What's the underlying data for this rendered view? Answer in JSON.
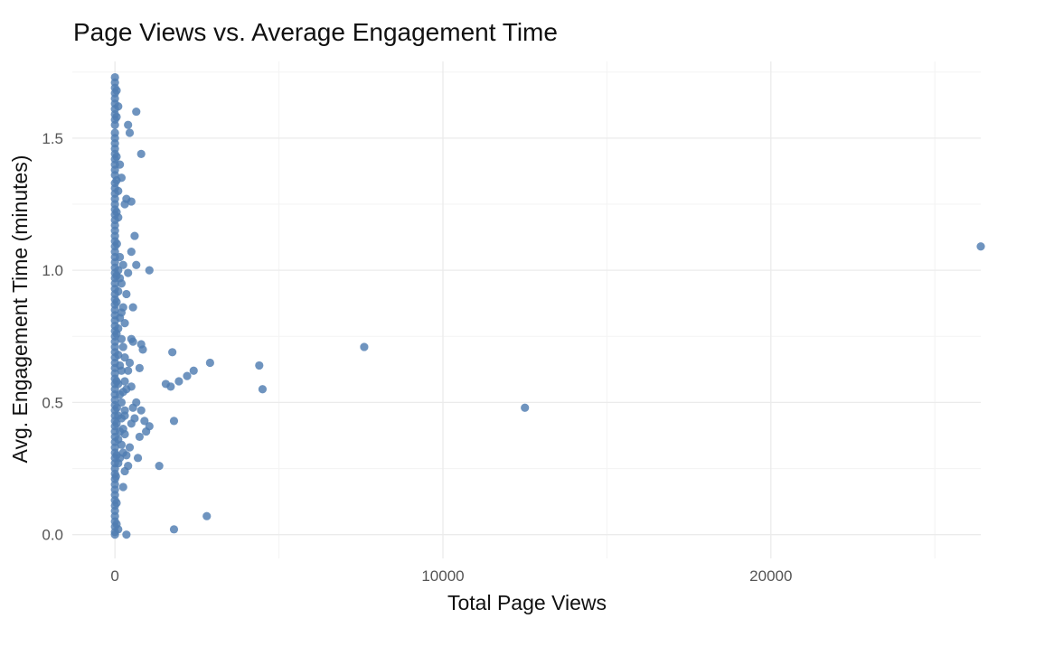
{
  "chart_data": {
    "type": "scatter",
    "title": "Page Views vs. Average Engagement Time",
    "xlabel": "Total Page Views",
    "ylabel": "Avg. Engagement Time (minutes)",
    "xlim": [
      -1300,
      26400
    ],
    "ylim": [
      -0.09,
      1.79
    ],
    "x_ticks": [
      0,
      10000,
      20000
    ],
    "x_tick_labels": [
      "0",
      "10000",
      "20000"
    ],
    "y_ticks": [
      0.0,
      0.5,
      1.0,
      1.5
    ],
    "y_tick_labels": [
      "0.0",
      "0.5",
      "1.0",
      "1.5"
    ],
    "grid": true,
    "legend": "none",
    "point_color": "#4f7db1",
    "series": [
      {
        "points": [
          [
            26400,
            1.09
          ],
          [
            12500,
            0.48
          ],
          [
            7600,
            0.71
          ],
          [
            4500,
            0.55
          ],
          [
            4400,
            0.64
          ],
          [
            2900,
            0.65
          ],
          [
            2800,
            0.07
          ],
          [
            2400,
            0.62
          ],
          [
            2200,
            0.6
          ],
          [
            1950,
            0.58
          ],
          [
            1800,
            0.43
          ],
          [
            1800,
            0.02
          ],
          [
            1750,
            0.69
          ],
          [
            1700,
            0.56
          ],
          [
            1550,
            0.57
          ],
          [
            1350,
            0.26
          ],
          [
            1050,
            1.0
          ],
          [
            1050,
            0.41
          ],
          [
            950,
            0.39
          ],
          [
            900,
            0.43
          ],
          [
            850,
            0.7
          ],
          [
            800,
            1.44
          ],
          [
            800,
            0.72
          ],
          [
            800,
            0.47
          ],
          [
            750,
            0.63
          ],
          [
            750,
            0.37
          ],
          [
            700,
            0.29
          ],
          [
            650,
            1.6
          ],
          [
            650,
            1.02
          ],
          [
            650,
            0.5
          ],
          [
            600,
            1.13
          ],
          [
            600,
            0.44
          ],
          [
            550,
            0.86
          ],
          [
            550,
            0.73
          ],
          [
            550,
            0.48
          ],
          [
            500,
            1.26
          ],
          [
            500,
            1.07
          ],
          [
            500,
            0.74
          ],
          [
            500,
            0.56
          ],
          [
            500,
            0.42
          ],
          [
            450,
            1.52
          ],
          [
            450,
            0.65
          ],
          [
            450,
            0.33
          ],
          [
            400,
            1.55
          ],
          [
            400,
            0.99
          ],
          [
            400,
            0.62
          ],
          [
            400,
            0.26
          ],
          [
            350,
            1.27
          ],
          [
            350,
            0.91
          ],
          [
            350,
            0.55
          ],
          [
            350,
            0.3
          ],
          [
            350,
            0.0
          ],
          [
            300,
            1.25
          ],
          [
            300,
            0.8
          ],
          [
            300,
            0.38
          ],
          [
            250,
            1.02
          ],
          [
            250,
            0.71
          ],
          [
            250,
            0.18
          ],
          [
            200,
            0.95
          ],
          [
            200,
            0.62
          ],
          [
            200,
            0.5
          ],
          [
            150,
            1.05
          ],
          [
            150,
            0.82
          ],
          [
            100,
            1.3
          ],
          [
            100,
            0.68
          ],
          [
            100,
            0.36
          ],
          [
            60,
            1.1
          ],
          [
            60,
            0.48
          ],
          [
            30,
            0.22
          ],
          [
            0,
            1.73
          ],
          [
            0,
            1.71
          ],
          [
            0,
            1.69
          ],
          [
            0,
            1.67
          ],
          [
            0,
            1.65
          ],
          [
            0,
            1.63
          ],
          [
            0,
            1.61
          ],
          [
            0,
            1.59
          ],
          [
            0,
            1.57
          ],
          [
            0,
            1.55
          ],
          [
            0,
            1.52
          ],
          [
            0,
            1.5
          ],
          [
            0,
            1.48
          ],
          [
            0,
            1.46
          ],
          [
            0,
            1.44
          ],
          [
            0,
            1.42
          ],
          [
            0,
            1.4
          ],
          [
            0,
            1.38
          ],
          [
            0,
            1.36
          ],
          [
            0,
            1.33
          ],
          [
            0,
            1.31
          ],
          [
            0,
            1.29
          ],
          [
            0,
            1.27
          ],
          [
            0,
            1.25
          ],
          [
            0,
            1.23
          ],
          [
            0,
            1.21
          ],
          [
            0,
            1.19
          ],
          [
            0,
            1.17
          ],
          [
            0,
            1.15
          ],
          [
            0,
            1.13
          ],
          [
            0,
            1.11
          ],
          [
            0,
            1.09
          ],
          [
            0,
            1.07
          ],
          [
            0,
            1.05
          ],
          [
            0,
            1.03
          ],
          [
            0,
            1.01
          ],
          [
            0,
            0.99
          ],
          [
            0,
            0.97
          ],
          [
            0,
            0.95
          ],
          [
            0,
            0.93
          ],
          [
            0,
            0.91
          ],
          [
            0,
            0.89
          ],
          [
            0,
            0.87
          ],
          [
            0,
            0.85
          ],
          [
            0,
            0.83
          ],
          [
            0,
            0.81
          ],
          [
            0,
            0.79
          ],
          [
            0,
            0.77
          ],
          [
            0,
            0.75
          ],
          [
            0,
            0.73
          ],
          [
            0,
            0.71
          ],
          [
            0,
            0.69
          ],
          [
            0,
            0.67
          ],
          [
            0,
            0.65
          ],
          [
            0,
            0.63
          ],
          [
            0,
            0.61
          ],
          [
            0,
            0.59
          ],
          [
            0,
            0.57
          ],
          [
            0,
            0.55
          ],
          [
            0,
            0.53
          ],
          [
            0,
            0.51
          ],
          [
            0,
            0.49
          ],
          [
            0,
            0.47
          ],
          [
            0,
            0.45
          ],
          [
            0,
            0.43
          ],
          [
            0,
            0.41
          ],
          [
            0,
            0.39
          ],
          [
            0,
            0.37
          ],
          [
            0,
            0.35
          ],
          [
            0,
            0.33
          ],
          [
            0,
            0.31
          ],
          [
            0,
            0.29
          ],
          [
            0,
            0.27
          ],
          [
            0,
            0.25
          ],
          [
            0,
            0.23
          ],
          [
            0,
            0.21
          ],
          [
            0,
            0.19
          ],
          [
            0,
            0.17
          ],
          [
            0,
            0.15
          ],
          [
            0,
            0.13
          ],
          [
            0,
            0.11
          ],
          [
            0,
            0.09
          ],
          [
            0,
            0.07
          ],
          [
            0,
            0.05
          ],
          [
            0,
            0.03
          ],
          [
            0,
            0.01
          ],
          [
            0,
            0.0
          ],
          [
            50,
            1.68
          ],
          [
            50,
            1.58
          ],
          [
            50,
            1.43
          ],
          [
            50,
            1.34
          ],
          [
            50,
            1.22
          ],
          [
            50,
            0.98
          ],
          [
            50,
            0.88
          ],
          [
            50,
            0.76
          ],
          [
            50,
            0.58
          ],
          [
            50,
            0.42
          ],
          [
            50,
            0.3
          ],
          [
            50,
            0.12
          ],
          [
            50,
            0.04
          ],
          [
            100,
            1.62
          ],
          [
            100,
            1.2
          ],
          [
            100,
            1.0
          ],
          [
            100,
            0.92
          ],
          [
            100,
            0.78
          ],
          [
            100,
            0.57
          ],
          [
            100,
            0.45
          ],
          [
            100,
            0.27
          ],
          [
            100,
            0.02
          ],
          [
            150,
            1.4
          ],
          [
            150,
            0.97
          ],
          [
            150,
            0.64
          ],
          [
            150,
            0.53
          ],
          [
            150,
            0.39
          ],
          [
            150,
            0.29
          ],
          [
            200,
            1.35
          ],
          [
            200,
            0.84
          ],
          [
            200,
            0.74
          ],
          [
            200,
            0.44
          ],
          [
            200,
            0.34
          ],
          [
            250,
            0.86
          ],
          [
            250,
            0.54
          ],
          [
            250,
            0.4
          ],
          [
            250,
            0.31
          ],
          [
            300,
            0.67
          ],
          [
            300,
            0.58
          ],
          [
            300,
            0.47
          ],
          [
            300,
            0.45
          ],
          [
            300,
            0.24
          ]
        ]
      }
    ]
  }
}
